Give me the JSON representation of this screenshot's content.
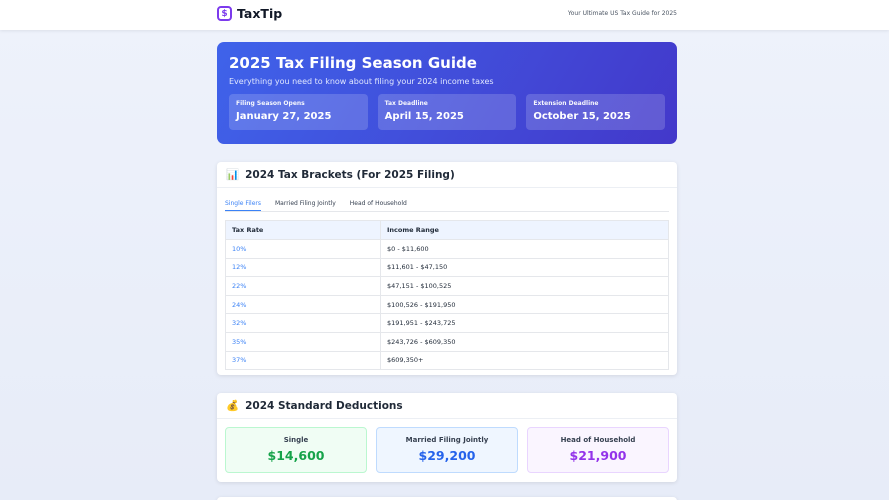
{
  "header": {
    "logo_icon": "$",
    "logo": "TaxTip",
    "tagline": "Your Ultimate US Tax Guide for 2025"
  },
  "hero": {
    "title": "2025 Tax Filing Season Guide",
    "subtitle": "Everything you need to know about filing your 2024 income taxes",
    "dates": [
      {
        "label": "Filing Season Opens",
        "value": "January 27, 2025"
      },
      {
        "label": "Tax Deadline",
        "value": "April 15, 2025"
      },
      {
        "label": "Extension Deadline",
        "value": "October 15, 2025"
      }
    ]
  },
  "brackets": {
    "icon": "📊",
    "title": "2024 Tax Brackets (For 2025 Filing)",
    "tabs": [
      "Single Filers",
      "Married Filing Jointly",
      "Head of Household"
    ],
    "table": {
      "columns": [
        "Tax Rate",
        "Income Range"
      ],
      "rows": [
        [
          "10%",
          "$0 - $11,600"
        ],
        [
          "12%",
          "$11,601 - $47,150"
        ],
        [
          "22%",
          "$47,151 - $100,525"
        ],
        [
          "24%",
          "$100,526 - $191,950"
        ],
        [
          "32%",
          "$191,951 - $243,725"
        ],
        [
          "35%",
          "$243,726 - $609,350"
        ],
        [
          "37%",
          "$609,350+"
        ]
      ]
    }
  },
  "deductions": {
    "icon": "💰",
    "title": "2024 Standard Deductions",
    "items": [
      {
        "label": "Single",
        "value": "$14,600"
      },
      {
        "label": "Married Filing Jointly",
        "value": "$29,200"
      },
      {
        "label": "Head of Household",
        "value": "$21,900"
      }
    ]
  }
}
